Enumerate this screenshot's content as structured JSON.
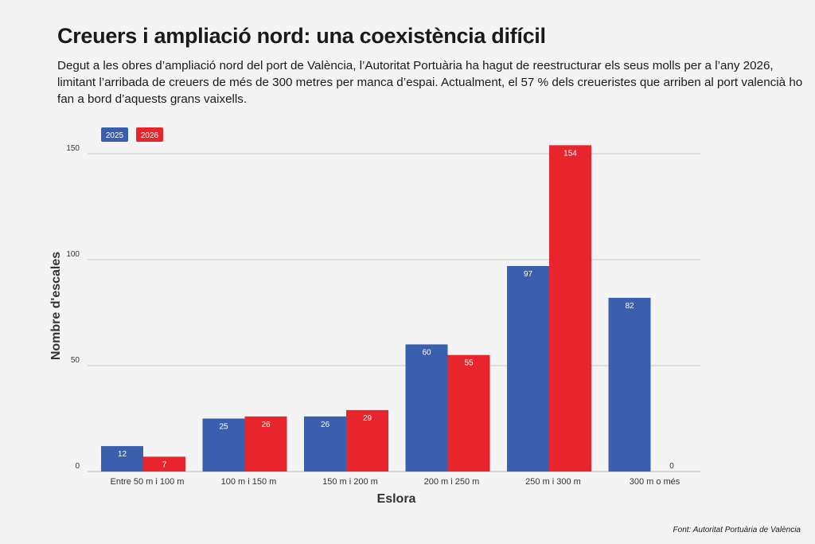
{
  "title": "Creuers i ampliació nord: una coexistència difícil",
  "subtitle": "Degut a les obres d’ampliació nord del port de València, l’Autoritat Portuària ha hagut de reestructurar els seus molls per a l’any 2026, limitant l’arribada de creuers de més de 300 metres per manca d’espai. Actualment, el 57 % dels creueristes que arriben al port valencià ho fan a bord d’aquests grans vaixells.",
  "source": "Font: Autoritat Portuària de València",
  "colors": {
    "series_2025": "#3a5fad",
    "series_2026": "#e8252c",
    "grid": "#c8c8c8",
    "background": "#f4f4f4"
  },
  "chart_data": {
    "type": "bar",
    "title": "Creuers i ampliació nord: una coexistència difícil",
    "xlabel": "Eslora",
    "ylabel": "Nombre d'escales",
    "categories": [
      "Entre 50 m i 100 m",
      "100 m i 150 m",
      "150 m i 200 m",
      "200 m i 250 m",
      "250 m i 300 m",
      "300 m o més"
    ],
    "series": [
      {
        "name": "2025",
        "values": [
          12,
          25,
          26,
          60,
          97,
          82
        ]
      },
      {
        "name": "2026",
        "values": [
          7,
          26,
          29,
          55,
          154,
          0
        ]
      }
    ],
    "yticks": [
      0,
      50,
      100,
      150
    ],
    "ylim": [
      0,
      160
    ],
    "grid": true,
    "legend": "top-left"
  }
}
